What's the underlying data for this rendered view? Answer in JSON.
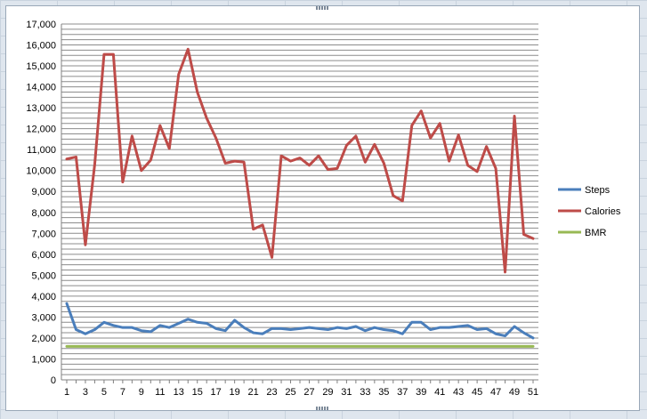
{
  "chart_data": {
    "type": "line",
    "ylim": [
      0,
      17000
    ],
    "y_ticks": [
      "0",
      "1,000",
      "2,000",
      "3,000",
      "4,000",
      "5,000",
      "6,000",
      "7,000",
      "8,000",
      "9,000",
      "10,000",
      "11,000",
      "12,000",
      "13,000",
      "14,000",
      "15,000",
      "16,000",
      "17,000"
    ],
    "x_ticks": [
      "1",
      "3",
      "5",
      "7",
      "9",
      "11",
      "13",
      "15",
      "17",
      "19",
      "21",
      "23",
      "25",
      "27",
      "29",
      "31",
      "33",
      "35",
      "37",
      "39",
      "41",
      "43",
      "45",
      "47",
      "49",
      "51"
    ],
    "x": [
      1,
      2,
      3,
      4,
      5,
      6,
      7,
      8,
      9,
      10,
      11,
      12,
      13,
      14,
      15,
      16,
      17,
      18,
      19,
      20,
      21,
      22,
      23,
      24,
      25,
      26,
      27,
      28,
      29,
      30,
      31,
      32,
      33,
      34,
      35,
      36,
      37,
      38,
      39,
      40,
      41,
      42,
      43,
      44,
      45,
      46,
      47,
      48,
      49,
      50,
      51
    ],
    "xlim": [
      1,
      51
    ],
    "grid": true,
    "legend_position": "right",
    "series": [
      {
        "name": "Steps",
        "color": "#4a7ebb",
        "values": [
          3650,
          2400,
          2200,
          2400,
          2750,
          2600,
          2500,
          2500,
          2350,
          2300,
          2600,
          2500,
          2700,
          2900,
          2750,
          2700,
          2450,
          2350,
          2850,
          2500,
          2250,
          2200,
          2450,
          2450,
          2400,
          2450,
          2500,
          2450,
          2400,
          2500,
          2450,
          2550,
          2350,
          2500,
          2400,
          2350,
          2200,
          2750,
          2750,
          2400,
          2500,
          2500,
          2550,
          2600,
          2400,
          2450,
          2200,
          2100,
          2550,
          2250,
          2000
        ]
      },
      {
        "name": "Calories",
        "color": "#be4b48",
        "values": [
          10550,
          10650,
          6450,
          10300,
          15550,
          15550,
          9450,
          11650,
          10000,
          10500,
          12150,
          11050,
          14600,
          15800,
          13750,
          12500,
          11550,
          10350,
          10450,
          10400,
          7200,
          7400,
          5850,
          10700,
          10450,
          10600,
          10250,
          10700,
          10050,
          10100,
          11200,
          11650,
          10400,
          11250,
          10350,
          8800,
          8550,
          12150,
          12850,
          11550,
          12250,
          10450,
          11700,
          10250,
          9950,
          11150,
          10100,
          5150,
          12600,
          6950,
          6750
        ]
      },
      {
        "name": "BMR",
        "color": "#98b954",
        "values": [
          1600,
          1600,
          1600,
          1600,
          1600,
          1600,
          1600,
          1600,
          1600,
          1600,
          1600,
          1600,
          1600,
          1600,
          1600,
          1600,
          1600,
          1600,
          1600,
          1600,
          1600,
          1600,
          1600,
          1600,
          1600,
          1600,
          1600,
          1600,
          1600,
          1600,
          1600,
          1600,
          1600,
          1600,
          1600,
          1600,
          1600,
          1600,
          1600,
          1600,
          1600,
          1600,
          1600,
          1600,
          1600,
          1600,
          1600,
          1600,
          1600,
          1600,
          1600
        ]
      }
    ]
  }
}
